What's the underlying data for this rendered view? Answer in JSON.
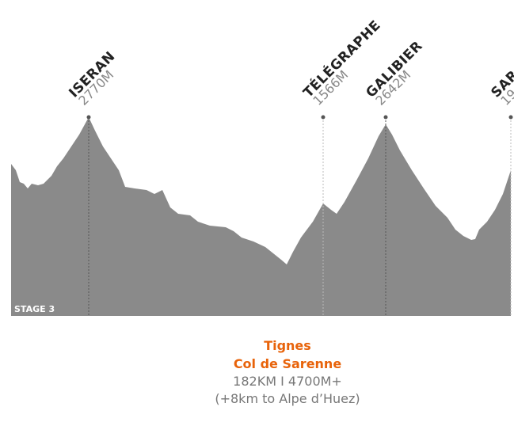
{
  "peaks": [
    {
      "name": "ISERAN",
      "elevation": "2770M"
    },
    {
      "name": "TÉLÉGRAPHE",
      "elevation": "1566M"
    },
    {
      "name": "GALIBIER",
      "elevation": "2642M"
    },
    {
      "name": "SAR",
      "elevation": "19"
    }
  ],
  "stage": "STAGE 3",
  "footer": {
    "start": "Tignes",
    "finish": "Col de Sarenne",
    "stats": "182KM I 4700M+",
    "note": "(+8km to Alpe d’Huez)"
  }
}
